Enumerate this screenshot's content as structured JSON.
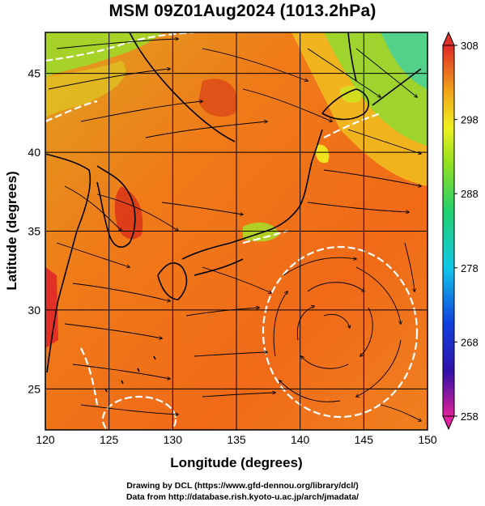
{
  "title": "MSM 09Z01Aug2024 (1013.2hPa)",
  "map": {
    "xlabel": "Longitude (degrees)",
    "ylabel": "Latitude  (degrees)",
    "lon_range": [
      120,
      150
    ],
    "lat_range": [
      22.4,
      47.6
    ],
    "x_ticks": [
      120,
      125,
      130,
      135,
      140,
      145,
      150
    ],
    "y_ticks": [
      25,
      30,
      35,
      40,
      45
    ],
    "field": "temperature",
    "overlay": "streamlines"
  },
  "colorbar": {
    "min": 258,
    "max": 308,
    "ticks": [
      308,
      298,
      288,
      278,
      268,
      258
    ],
    "colors": [
      "#e0209a",
      "#1010a0",
      "#2048e0",
      "#10c8e8",
      "#20d070",
      "#70e020",
      "#f0f020",
      "#f0b018",
      "#f07018",
      "#e02020"
    ]
  },
  "credits": {
    "line1": "Drawing by DCL (https://www.gfd-dennou.org/library/dcl/)",
    "line2": "Data from http://database.rish.kyoto-u.ac.jp/arch/jmadata/"
  }
}
